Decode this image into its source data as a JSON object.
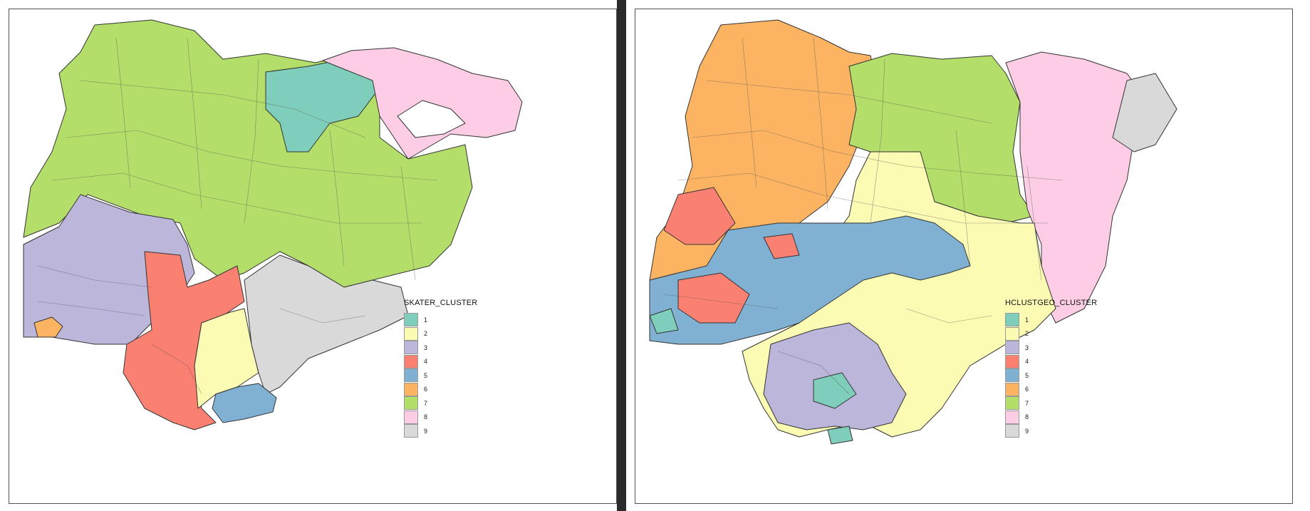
{
  "left_map": {
    "legend_title": "SKATER_CLUSTER",
    "legend": [
      {
        "label": "1",
        "color": "#7fcdbb"
      },
      {
        "label": "2",
        "color": "#fbfbb4"
      },
      {
        "label": "3",
        "color": "#bcb6da"
      },
      {
        "label": "4",
        "color": "#fa8072"
      },
      {
        "label": "5",
        "color": "#80b1d3"
      },
      {
        "label": "6",
        "color": "#fdb462"
      },
      {
        "label": "7",
        "color": "#b3de69"
      },
      {
        "label": "8",
        "color": "#fccde5"
      },
      {
        "label": "9",
        "color": "#d9d9d9"
      }
    ]
  },
  "right_map": {
    "legend_title": "HCLUSTGEO_CLUSTER",
    "legend": [
      {
        "label": "1",
        "color": "#7fcdbb"
      },
      {
        "label": "2",
        "color": "#fbfbb4"
      },
      {
        "label": "3",
        "color": "#bcb6da"
      },
      {
        "label": "4",
        "color": "#fa8072"
      },
      {
        "label": "5",
        "color": "#80b1d3"
      },
      {
        "label": "6",
        "color": "#fdb462"
      },
      {
        "label": "7",
        "color": "#b3de69"
      },
      {
        "label": "8",
        "color": "#fccde5"
      },
      {
        "label": "9",
        "color": "#d9d9d9"
      }
    ]
  }
}
